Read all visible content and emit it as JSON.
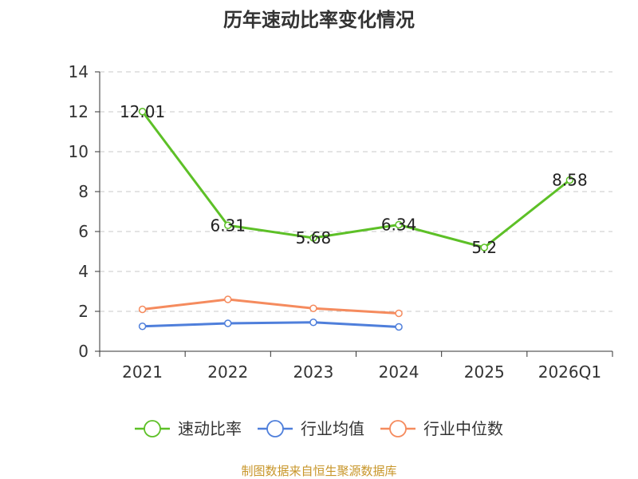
{
  "chart_data": {
    "type": "line",
    "title": "历年速动比率变化情况",
    "categories": [
      "2021",
      "2022",
      "2023",
      "2024",
      "2025",
      "2026Q1"
    ],
    "ylim": [
      0,
      14
    ],
    "yticks": [
      0,
      2,
      4,
      6,
      8,
      10,
      12,
      14
    ],
    "ytick_labels": [
      "0",
      "2",
      "4",
      "6",
      "8",
      "10",
      "12",
      "14"
    ],
    "grid": true,
    "legend_position": "bottom",
    "series": [
      {
        "name": "速动比率",
        "color": "#5dc027",
        "values": [
          12.01,
          6.31,
          5.68,
          6.34,
          5.2,
          8.58
        ],
        "data_labels": [
          "12.01",
          "6.31",
          "5.68",
          "6.34",
          "5.2",
          "8.58"
        ]
      },
      {
        "name": "行业均值",
        "color": "#4f7fdb",
        "values": [
          1.25,
          1.4,
          1.45,
          1.22,
          null,
          null
        ],
        "data_labels": []
      },
      {
        "name": "行业中位数",
        "color": "#f58b5e",
        "values": [
          2.1,
          2.6,
          2.15,
          1.9,
          null,
          null
        ],
        "data_labels": []
      }
    ]
  },
  "source_text": "制图数据来自恒生聚源数据库"
}
